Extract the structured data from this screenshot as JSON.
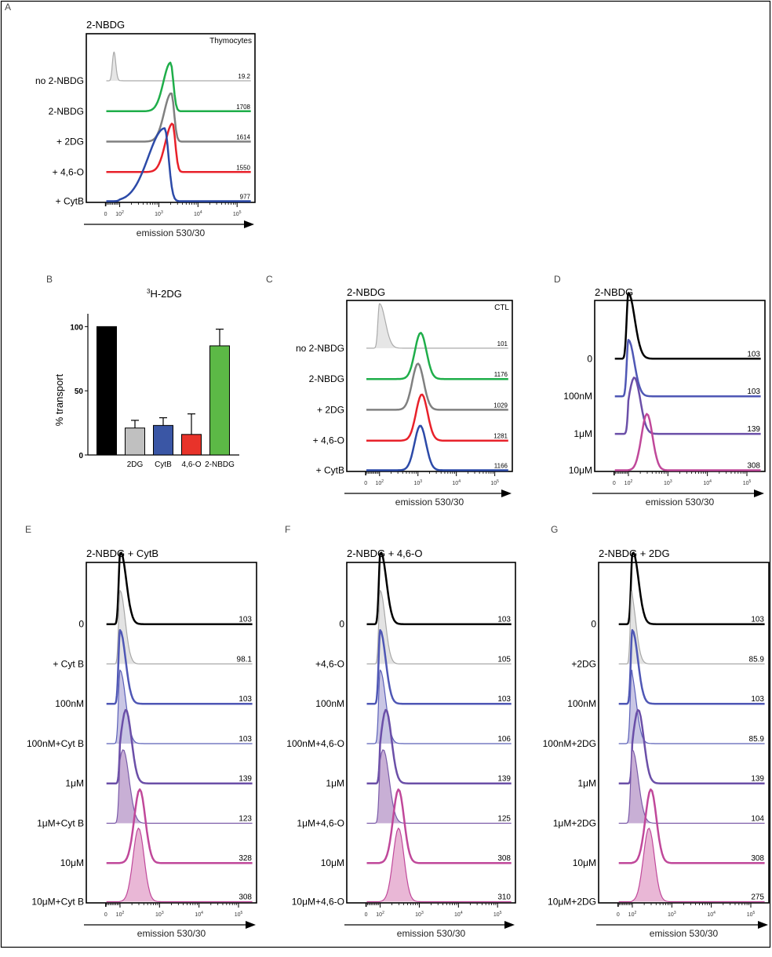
{
  "figure": {
    "panel_letters": [
      "A",
      "B",
      "C",
      "D",
      "E",
      "F",
      "G"
    ]
  },
  "chart_data": [
    {
      "id": "A",
      "type": "histogram-overlay",
      "panel_label": "A",
      "title": "2-NBDG",
      "corner_label": "Thymocytes",
      "xlabel": "emission 530/30",
      "x_scale": "biexponential",
      "x_ticks": [
        "0",
        "10^2",
        "10^3",
        "10^4",
        "10^5"
      ],
      "series": [
        {
          "label": "no 2-NBDG",
          "value": "19.2",
          "peak_log": 1.45,
          "width": 0.18,
          "color": "#aaaaaa",
          "filled": true,
          "fill": "#e6e6e6",
          "line_width": 1.2,
          "peak_height": 0.95,
          "skew": 0
        },
        {
          "label": "2-NBDG",
          "value": "1708",
          "peak_log": 3.3,
          "width": 0.07,
          "color": "#1fae4a",
          "filled": false,
          "line_width": 2.5,
          "peak_height": 1.6,
          "skew": 1
        },
        {
          "label": "+ 2DG",
          "value": "1614",
          "peak_log": 3.32,
          "width": 0.07,
          "color": "#808080",
          "filled": false,
          "line_width": 2.5,
          "peak_height": 1.6,
          "skew": 1
        },
        {
          "label": "+ 4,6-O",
          "value": "1550",
          "peak_log": 3.35,
          "width": 0.07,
          "color": "#e8212a",
          "filled": false,
          "line_width": 2.5,
          "peak_height": 1.6,
          "skew": 1
        },
        {
          "label": "+ CytB",
          "value": "977",
          "peak_log": 3.15,
          "width": 0.1,
          "color": "#2c4aa8",
          "filled": false,
          "line_width": 2.5,
          "peak_height": 2.4,
          "skew": 2
        }
      ]
    },
    {
      "id": "B",
      "type": "bar",
      "panel_label": "B",
      "title": "3H-2DG",
      "title_sup": "3",
      "title_main": "H-2DG",
      "ylabel": "% transport",
      "ylim": [
        0,
        110
      ],
      "y_ticks": [
        0,
        50,
        100
      ],
      "categories": [
        "",
        "2DG",
        "CytB",
        "4,6-O",
        "2-NBDG"
      ],
      "values": [
        100,
        21,
        23,
        16,
        85
      ],
      "errors": [
        0,
        6,
        6,
        16,
        13
      ],
      "colors": [
        "#000000",
        "#c0c0c0",
        "#3a56a5",
        "#e8332a",
        "#5cb946"
      ]
    },
    {
      "id": "C",
      "type": "histogram-overlay",
      "panel_label": "C",
      "title": "2-NBDG",
      "corner_label": "CTL",
      "xlabel": "emission 530/30",
      "x_scale": "biexponential",
      "x_ticks": [
        "0",
        "10^2",
        "10^3",
        "10^4",
        "10^5"
      ],
      "series": [
        {
          "label": "no 2-NBDG",
          "value": "101",
          "peak_log": 2.0,
          "width": 0.15,
          "color": "#aaaaaa",
          "filled": true,
          "fill": "#e6e6e6",
          "line_width": 1.2,
          "peak_height": 1.45,
          "skew": 0
        },
        {
          "label": "2-NBDG",
          "value": "1176",
          "peak_log": 3.07,
          "width": 0.15,
          "color": "#1fae4a",
          "filled": false,
          "line_width": 2.5,
          "peak_height": 1.5,
          "skew": 0
        },
        {
          "label": "+ 2DG",
          "value": "1029",
          "peak_log": 3.0,
          "width": 0.15,
          "color": "#808080",
          "filled": false,
          "line_width": 2.5,
          "peak_height": 1.5,
          "skew": 0
        },
        {
          "label": "+ 4,6-O",
          "value": "1281",
          "peak_log": 3.1,
          "width": 0.15,
          "color": "#e8212a",
          "filled": false,
          "line_width": 2.5,
          "peak_height": 1.5,
          "skew": 0
        },
        {
          "label": "+ CytB",
          "value": "1166",
          "peak_log": 3.06,
          "width": 0.15,
          "color": "#2c4aa8",
          "filled": false,
          "line_width": 2.5,
          "peak_height": 1.45,
          "skew": 0
        }
      ]
    },
    {
      "id": "D",
      "type": "histogram-overlay",
      "panel_label": "D",
      "title": "2-NBDG",
      "corner_label": "",
      "xlabel": "emission 530/30",
      "x_scale": "biexponential",
      "x_ticks": [
        "0",
        "10^2",
        "10^3",
        "10^4",
        "10^5"
      ],
      "series": [
        {
          "label": "0",
          "value": "103",
          "peak_log": 2.0,
          "width": 0.16,
          "color": "#000000",
          "filled": false,
          "line_width": 2.5,
          "peak_height": 1.75,
          "skew": 0
        },
        {
          "label": "100nM",
          "value": "103",
          "peak_log": 2.0,
          "width": 0.15,
          "color": "#4f57b5",
          "filled": false,
          "line_width": 2.5,
          "peak_height": 1.5,
          "skew": 0
        },
        {
          "label": "1μM",
          "value": "139",
          "peak_log": 2.15,
          "width": 0.15,
          "color": "#6b4fa8",
          "filled": false,
          "line_width": 2.5,
          "peak_height": 1.5,
          "skew": 0
        },
        {
          "label": "10μM",
          "value": "308",
          "peak_log": 2.47,
          "width": 0.14,
          "color": "#c0489a",
          "filled": false,
          "line_width": 2.5,
          "peak_height": 1.5,
          "skew": 0
        }
      ]
    },
    {
      "id": "E",
      "type": "histogram-overlay",
      "panel_label": "E",
      "title": "2-NBDG + CytB",
      "corner_label": "",
      "xlabel": "emission 530/30",
      "x_scale": "biexponential",
      "x_ticks": [
        "0",
        "10^2",
        "10^3",
        "10^4",
        "10^5"
      ],
      "series": [
        {
          "label": "0",
          "value": "103",
          "peak_log": 2.02,
          "width": 0.14,
          "color": "#000000",
          "filled": false,
          "line_width": 2.5,
          "peak_height": 1.8,
          "skew": 0
        },
        {
          "label": "+ Cyt B",
          "value": "98.1",
          "peak_log": 2.0,
          "width": 0.13,
          "color": "#a8a8a8",
          "filled": true,
          "fill": "#e3e3e3",
          "line_width": 1.2,
          "peak_height": 1.85,
          "skew": 0
        },
        {
          "label": "100nM",
          "value": "103",
          "peak_log": 2.0,
          "width": 0.14,
          "color": "#4f57b5",
          "filled": false,
          "line_width": 2.5,
          "peak_height": 1.85,
          "skew": 0
        },
        {
          "label": "100nM+Cyt B",
          "value": "103",
          "peak_log": 2.0,
          "width": 0.14,
          "color": "#5b60b8",
          "filled": true,
          "fill": "#c9c6e4",
          "line_width": 1.2,
          "peak_height": 1.85,
          "skew": 0
        },
        {
          "label": "1μM",
          "value": "139",
          "peak_log": 2.15,
          "width": 0.14,
          "color": "#6b4fa8",
          "filled": false,
          "line_width": 2.5,
          "peak_height": 1.85,
          "skew": 0
        },
        {
          "label": "1μM+Cyt B",
          "value": "123",
          "peak_log": 2.08,
          "width": 0.15,
          "color": "#7a5aa8",
          "filled": true,
          "fill": "#c8afd5",
          "line_width": 1.2,
          "peak_height": 1.85,
          "skew": 0
        },
        {
          "label": "10μM",
          "value": "328",
          "peak_log": 2.5,
          "width": 0.14,
          "color": "#c0489a",
          "filled": false,
          "line_width": 2.5,
          "peak_height": 1.85,
          "skew": 0
        },
        {
          "label": "10μM+Cyt B",
          "value": "308",
          "peak_log": 2.47,
          "width": 0.14,
          "color": "#c0489a",
          "filled": true,
          "fill": "#e9b7d6",
          "line_width": 1.2,
          "peak_height": 1.85,
          "skew": 0
        }
      ]
    },
    {
      "id": "F",
      "type": "histogram-overlay",
      "panel_label": "F",
      "title": "2-NBDG + 4,6-O",
      "corner_label": "",
      "xlabel": "emission 530/30",
      "x_scale": "biexponential",
      "x_ticks": [
        "0",
        "10^2",
        "10^3",
        "10^4",
        "10^5"
      ],
      "series": [
        {
          "label": "0",
          "value": "103",
          "peak_log": 2.02,
          "width": 0.14,
          "color": "#000000",
          "filled": false,
          "line_width": 2.5,
          "peak_height": 1.8,
          "skew": 0
        },
        {
          "label": "+4,6-O",
          "value": "105",
          "peak_log": 2.0,
          "width": 0.13,
          "color": "#a8a8a8",
          "filled": true,
          "fill": "#e3e3e3",
          "line_width": 1.2,
          "peak_height": 1.85,
          "skew": 0
        },
        {
          "label": "100nM",
          "value": "103",
          "peak_log": 2.0,
          "width": 0.14,
          "color": "#4f57b5",
          "filled": false,
          "line_width": 2.5,
          "peak_height": 1.85,
          "skew": 0
        },
        {
          "label": "100nM+4,6-O",
          "value": "106",
          "peak_log": 2.0,
          "width": 0.14,
          "color": "#5b60b8",
          "filled": true,
          "fill": "#c9c6e4",
          "line_width": 1.2,
          "peak_height": 1.85,
          "skew": 0
        },
        {
          "label": "1μM",
          "value": "139",
          "peak_log": 2.15,
          "width": 0.14,
          "color": "#6b4fa8",
          "filled": false,
          "line_width": 2.5,
          "peak_height": 1.85,
          "skew": 0
        },
        {
          "label": "1μM+4,6-O",
          "value": "125",
          "peak_log": 2.08,
          "width": 0.15,
          "color": "#7a5aa8",
          "filled": true,
          "fill": "#c8afd5",
          "line_width": 1.2,
          "peak_height": 1.85,
          "skew": 0
        },
        {
          "label": "10μM",
          "value": "308",
          "peak_log": 2.47,
          "width": 0.14,
          "color": "#c0489a",
          "filled": false,
          "line_width": 2.5,
          "peak_height": 1.85,
          "skew": 0
        },
        {
          "label": "10μM+4,6-O",
          "value": "310",
          "peak_log": 2.47,
          "width": 0.14,
          "color": "#c0489a",
          "filled": true,
          "fill": "#e9b7d6",
          "line_width": 1.2,
          "peak_height": 1.85,
          "skew": 0
        }
      ]
    },
    {
      "id": "G",
      "type": "histogram-overlay",
      "panel_label": "G",
      "title": "2-NBDG + 2DG",
      "corner_label": "",
      "xlabel": "emission 530/30",
      "x_scale": "biexponential",
      "x_ticks": [
        "0",
        "10^2",
        "10^3",
        "10^4",
        "10^5"
      ],
      "series": [
        {
          "label": "0",
          "value": "103",
          "peak_log": 2.02,
          "width": 0.14,
          "color": "#000000",
          "filled": false,
          "line_width": 2.5,
          "peak_height": 1.8,
          "skew": 0
        },
        {
          "label": "+2DG",
          "value": "85.9",
          "peak_log": 1.95,
          "width": 0.13,
          "color": "#a8a8a8",
          "filled": true,
          "fill": "#e3e3e3",
          "line_width": 1.2,
          "peak_height": 1.85,
          "skew": 0
        },
        {
          "label": "100nM",
          "value": "103",
          "peak_log": 2.0,
          "width": 0.14,
          "color": "#4f57b5",
          "filled": false,
          "line_width": 2.5,
          "peak_height": 1.85,
          "skew": 0
        },
        {
          "label": "100nM+2DG",
          "value": "85.9",
          "peak_log": 1.95,
          "width": 0.14,
          "color": "#5b60b8",
          "filled": true,
          "fill": "#c9c6e4",
          "line_width": 1.2,
          "peak_height": 1.85,
          "skew": 0
        },
        {
          "label": "1μM",
          "value": "139",
          "peak_log": 2.15,
          "width": 0.14,
          "color": "#6b4fa8",
          "filled": false,
          "line_width": 2.5,
          "peak_height": 1.85,
          "skew": 0
        },
        {
          "label": "1μM+2DG",
          "value": "104",
          "peak_log": 2.0,
          "width": 0.15,
          "color": "#7a5aa8",
          "filled": true,
          "fill": "#c8afd5",
          "line_width": 1.2,
          "peak_height": 1.85,
          "skew": 0
        },
        {
          "label": "10μM",
          "value": "308",
          "peak_log": 2.47,
          "width": 0.14,
          "color": "#c0489a",
          "filled": false,
          "line_width": 2.5,
          "peak_height": 1.85,
          "skew": 0
        },
        {
          "label": "10μM+2DG",
          "value": "275",
          "peak_log": 2.42,
          "width": 0.14,
          "color": "#c0489a",
          "filled": true,
          "fill": "#e9b7d6",
          "line_width": 1.2,
          "peak_height": 1.85,
          "skew": 0
        }
      ]
    }
  ]
}
